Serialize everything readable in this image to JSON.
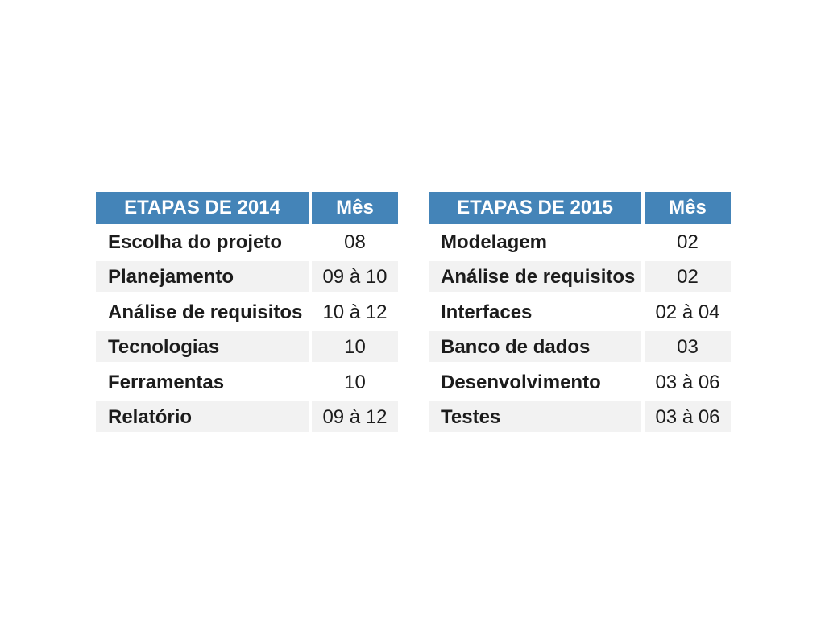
{
  "page": {
    "background": "#ffffff",
    "description": "Slide with two project schedule tables"
  },
  "colors": {
    "header_bg": "#4484b8",
    "header_text": "#ffffff",
    "zebra_row_bg": "#f2f2f2",
    "plain_row_bg": "#ffffff",
    "body_text": "#1c1c1c"
  },
  "tables": [
    {
      "title": "ETAPAS DE 2014",
      "month_label": "Mês",
      "rows": [
        {
          "stage": "Escolha do projeto",
          "month": "08"
        },
        {
          "stage": "Planejamento",
          "month": "09 à 10"
        },
        {
          "stage": "Análise de requisitos",
          "month": "10 à 12"
        },
        {
          "stage": "Tecnologias",
          "month": "10"
        },
        {
          "stage": "Ferramentas",
          "month": "10"
        },
        {
          "stage": "Relatório",
          "month": "09 à 12"
        }
      ]
    },
    {
      "title": "ETAPAS DE 2015",
      "month_label": "Mês",
      "rows": [
        {
          "stage": "Modelagem",
          "month": "02"
        },
        {
          "stage": "Análise de requisitos",
          "month": "02"
        },
        {
          "stage": "Interfaces",
          "month": "02 à 04"
        },
        {
          "stage": "Banco de dados",
          "month": "03"
        },
        {
          "stage": "Desenvolvimento",
          "month": "03 à 06"
        },
        {
          "stage": "Testes",
          "month": "03 à 06"
        }
      ]
    }
  ]
}
